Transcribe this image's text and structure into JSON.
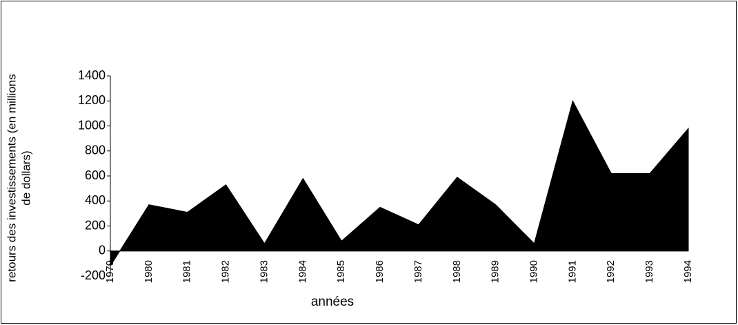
{
  "chart_data": {
    "type": "area",
    "ylabel": [
      "retours des investissements (en millions",
      "de dollars)"
    ],
    "xlabel": "années",
    "categories": [
      "1979",
      "1980",
      "1981",
      "1982",
      "1983",
      "1984",
      "1985",
      "1986",
      "1987",
      "1988",
      "1989",
      "1990",
      "1991",
      "1992",
      "1993",
      "1994"
    ],
    "values": [
      -120,
      370,
      310,
      530,
      60,
      580,
      80,
      350,
      210,
      590,
      370,
      60,
      1200,
      620,
      620,
      980
    ],
    "color": "#000000",
    "ylim": [
      -200,
      1400
    ],
    "yticks": [
      -200,
      0,
      200,
      400,
      600,
      800,
      1000,
      1200,
      1400
    ]
  }
}
